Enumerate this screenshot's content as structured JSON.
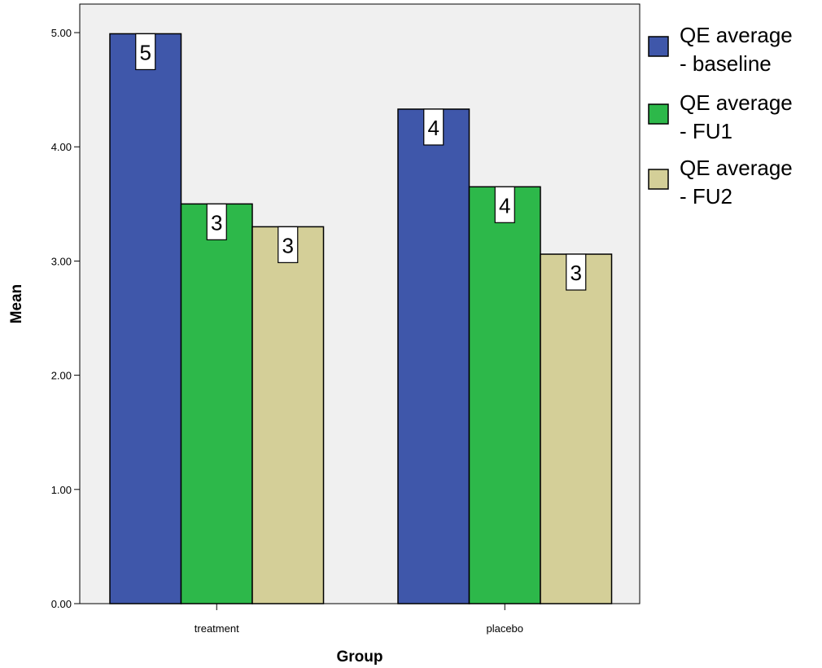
{
  "chart_data": {
    "type": "bar",
    "xlabel": "Group",
    "ylabel": "Mean",
    "categories": [
      "treatment",
      "placebo"
    ],
    "ylim": [
      0,
      5.25
    ],
    "yticks": [
      "0.00",
      "1.00",
      "2.00",
      "3.00",
      "4.00",
      "5.00"
    ],
    "series": [
      {
        "name": "QE average - baseline",
        "legend_lines": [
          "QE average",
          "- baseline"
        ],
        "color": "#3f57aa",
        "values": [
          4.99,
          4.33
        ],
        "labels": [
          "5",
          "4"
        ]
      },
      {
        "name": "QE average - FU1",
        "legend_lines": [
          "QE average",
          "- FU1"
        ],
        "color": "#2db84a",
        "values": [
          3.5,
          3.65
        ],
        "labels": [
          "3",
          "4"
        ]
      },
      {
        "name": "QE average - FU2",
        "legend_lines": [
          "QE average",
          "- FU2"
        ],
        "color": "#d4cf98",
        "values": [
          3.3,
          3.06
        ],
        "labels": [
          "3",
          "3"
        ]
      }
    ],
    "plot_background": "#f0f0f0",
    "grid": false,
    "legend_position": "right"
  }
}
